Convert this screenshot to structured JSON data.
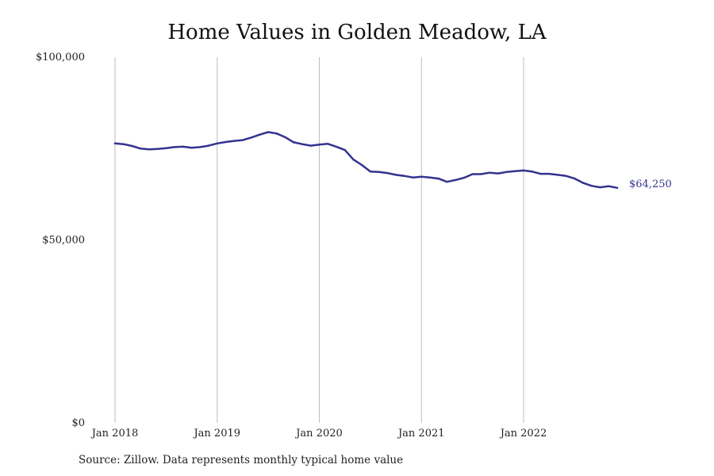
{
  "chart_data": {
    "type": "line",
    "title": "Home Values in Golden Meadow, LA",
    "xlabel": "",
    "ylabel": "",
    "ylim": [
      0,
      100000
    ],
    "y_ticks": [
      {
        "value": 0,
        "label": "$0"
      },
      {
        "value": 50000,
        "label": "$50,000"
      },
      {
        "value": 100000,
        "label": "$100,000"
      }
    ],
    "x_ticks": [
      "Jan 2018",
      "Jan 2019",
      "Jan 2020",
      "Jan 2021",
      "Jan 2022"
    ],
    "x_range": [
      "2018-01",
      "2022-12"
    ],
    "grid": "vertical lines at January of each year",
    "line_color": "#33338f",
    "end_label": "$64,250",
    "series": [
      {
        "x": [
          "2018-01",
          "2018-02",
          "2018-03",
          "2018-04",
          "2018-05",
          "2018-06",
          "2018-07",
          "2018-08",
          "2018-09",
          "2018-10",
          "2018-11",
          "2018-12",
          "2019-01",
          "2019-02",
          "2019-03",
          "2019-04",
          "2019-05",
          "2019-06",
          "2019-07",
          "2019-08",
          "2019-09",
          "2019-10",
          "2019-11",
          "2019-12",
          "2020-01",
          "2020-02",
          "2020-03",
          "2020-04",
          "2020-05",
          "2020-06",
          "2020-07",
          "2020-08",
          "2020-09",
          "2020-10",
          "2020-11",
          "2020-12",
          "2021-01",
          "2021-02",
          "2021-03",
          "2021-04",
          "2021-05",
          "2021-06",
          "2021-07",
          "2021-08",
          "2021-09",
          "2021-10",
          "2021-11",
          "2021-12",
          "2022-01",
          "2022-02",
          "2022-03",
          "2022-04",
          "2022-05",
          "2022-06",
          "2022-07",
          "2022-08",
          "2022-09",
          "2022-10",
          "2022-11",
          "2022-12"
        ],
        "values": [
          76400,
          76200,
          75700,
          75000,
          74800,
          74900,
          75100,
          75400,
          75500,
          75200,
          75400,
          75800,
          76400,
          76800,
          77100,
          77300,
          78000,
          78800,
          79500,
          79100,
          78100,
          76700,
          76200,
          75800,
          76100,
          76300,
          75500,
          74600,
          72000,
          70500,
          68700,
          68600,
          68300,
          67800,
          67500,
          67100,
          67300,
          67100,
          66800,
          65900,
          66400,
          67000,
          68000,
          68000,
          68400,
          68200,
          68600,
          68800,
          69000,
          68700,
          68100,
          68100,
          67800,
          67500,
          66800,
          65600,
          64800,
          64400,
          64700,
          64250
        ]
      }
    ]
  },
  "source_note": "Source: Zillow. Data represents monthly typical home value"
}
